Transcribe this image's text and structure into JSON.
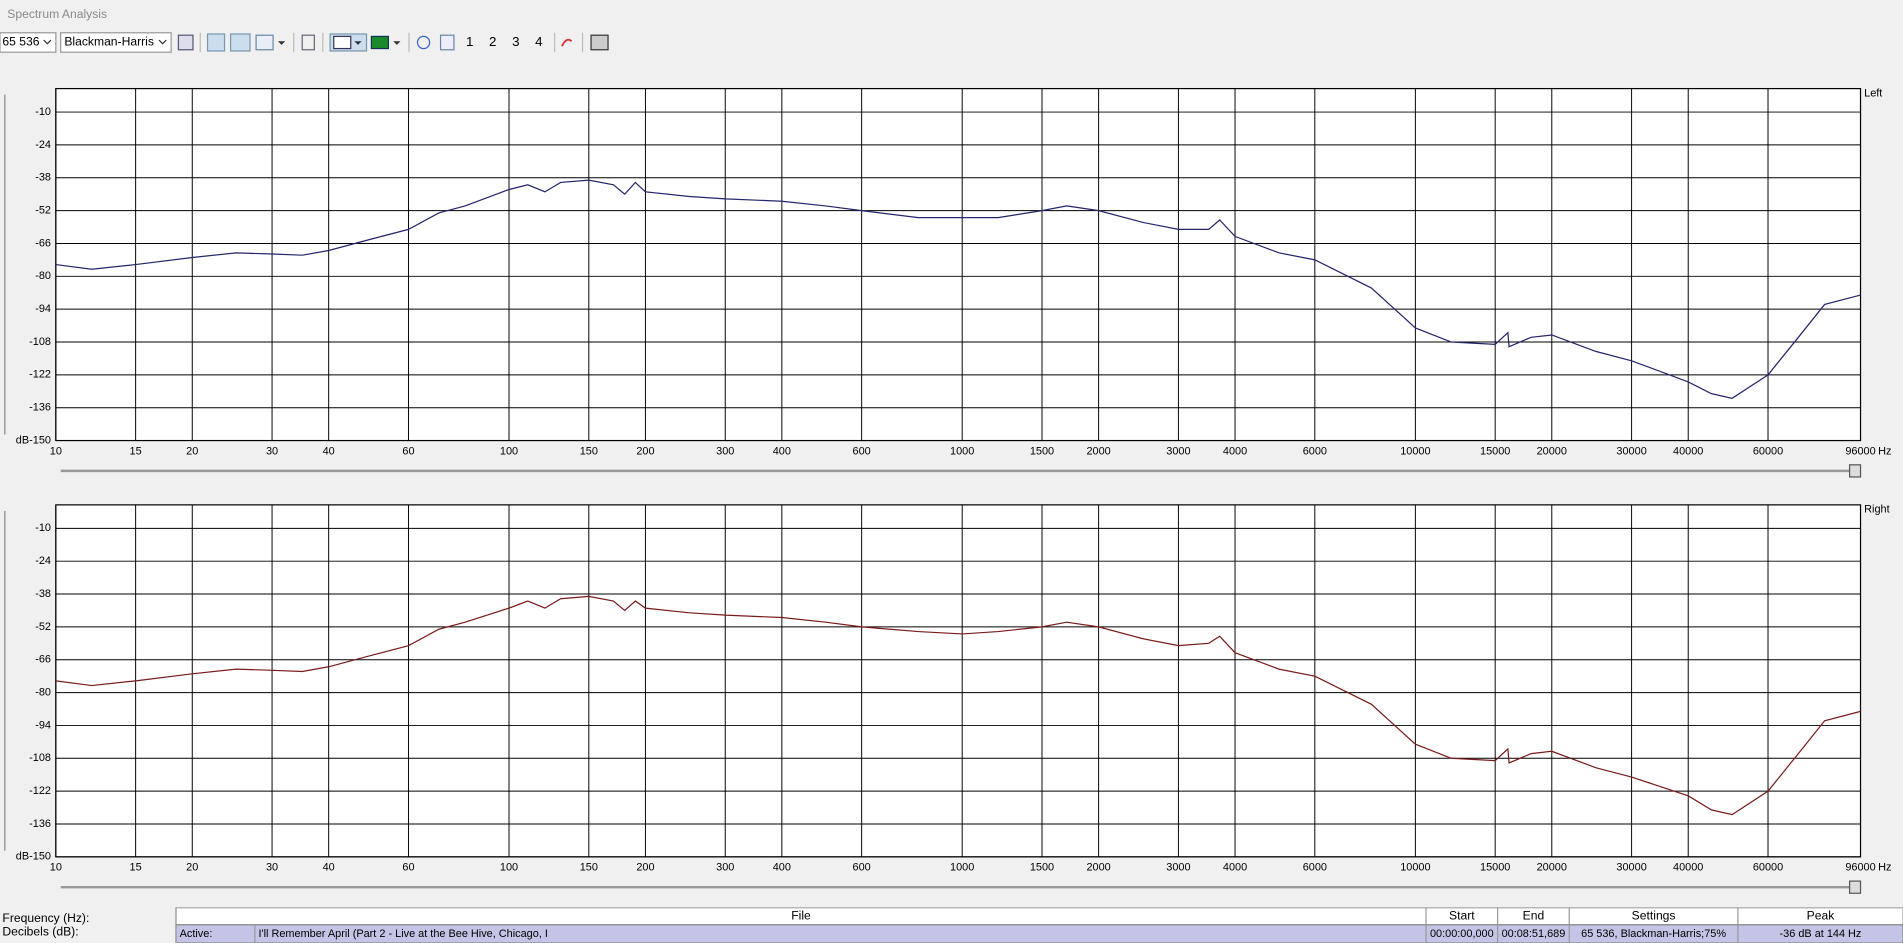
{
  "window": {
    "title": "Spectrum Analysis"
  },
  "toolbar": {
    "fft_size": "65 536",
    "window_function": "Blackman-Harris",
    "snapshots": [
      "1",
      "2",
      "3",
      "4"
    ]
  },
  "chart_data": [
    {
      "type": "line",
      "x_scale": "log",
      "grid": true,
      "ylabel": "dB",
      "xlabel": "Hz",
      "xlim": [
        10,
        96000
      ],
      "ylim": [
        -150,
        0
      ],
      "xticks": [
        10,
        15,
        20,
        30,
        40,
        60,
        100,
        150,
        200,
        300,
        400,
        600,
        1000,
        1500,
        2000,
        3000,
        4000,
        6000,
        10000,
        15000,
        20000,
        30000,
        40000,
        60000,
        96000
      ],
      "yticks": [
        -10,
        -24,
        -38,
        -52,
        -66,
        -80,
        -94,
        -108,
        -122,
        -136,
        -150
      ],
      "x": [
        10,
        12,
        15,
        20,
        25,
        30,
        35,
        40,
        50,
        60,
        70,
        80,
        100,
        110,
        120,
        130,
        150,
        170,
        180,
        190,
        200,
        250,
        300,
        400,
        500,
        600,
        800,
        1000,
        1200,
        1500,
        1700,
        2000,
        2500,
        3000,
        3500,
        3700,
        4000,
        5000,
        6000,
        8000,
        10000,
        12000,
        15000,
        16000,
        16100,
        18000,
        20000,
        25000,
        30000,
        40000,
        45000,
        50000,
        60000,
        70000,
        80000,
        96000
      ],
      "series": [
        {
          "name": "Left",
          "color": "#24246e",
          "values": [
            -75,
            -77,
            -75,
            -72,
            -70,
            -70.5,
            -71,
            -69,
            -64,
            -60,
            -53,
            -50,
            -43,
            -41,
            -44,
            -40,
            -39,
            -41,
            -45,
            -40,
            -44,
            -46,
            -47,
            -48,
            -50,
            -52,
            -55,
            -55,
            -55,
            -52,
            -50,
            -52,
            -57,
            -60,
            -60,
            -56,
            -63,
            -70,
            -73,
            -85,
            -102,
            -108,
            -109,
            -104,
            -110,
            -106,
            -105,
            -112,
            -116,
            -125,
            -130,
            -132,
            -122,
            -106,
            -92,
            -88
          ]
        }
      ]
    },
    {
      "type": "line",
      "x_scale": "log",
      "grid": true,
      "ylabel": "dB",
      "xlabel": "Hz",
      "xlim": [
        10,
        96000
      ],
      "ylim": [
        -150,
        0
      ],
      "xticks": [
        10,
        15,
        20,
        30,
        40,
        60,
        100,
        150,
        200,
        300,
        400,
        600,
        1000,
        1500,
        2000,
        3000,
        4000,
        6000,
        10000,
        15000,
        20000,
        30000,
        40000,
        60000,
        96000
      ],
      "yticks": [
        -10,
        -24,
        -38,
        -52,
        -66,
        -80,
        -94,
        -108,
        -122,
        -136,
        -150
      ],
      "x": [
        10,
        12,
        15,
        20,
        25,
        30,
        35,
        40,
        50,
        60,
        70,
        80,
        100,
        110,
        120,
        130,
        150,
        170,
        180,
        190,
        200,
        250,
        300,
        400,
        500,
        600,
        800,
        1000,
        1200,
        1500,
        1700,
        2000,
        2500,
        3000,
        3500,
        3700,
        4000,
        5000,
        6000,
        8000,
        10000,
        12000,
        15000,
        16000,
        16100,
        18000,
        20000,
        25000,
        30000,
        40000,
        45000,
        50000,
        60000,
        70000,
        80000,
        96000
      ],
      "series": [
        {
          "name": "Right",
          "color": "#7a1a1a",
          "values": [
            -75,
            -77,
            -75,
            -72,
            -70,
            -70.5,
            -71,
            -69,
            -64,
            -60,
            -53,
            -50,
            -44,
            -41,
            -44,
            -40,
            -39,
            -41,
            -45,
            -41,
            -44,
            -46,
            -47,
            -48,
            -50,
            -52,
            -54,
            -55,
            -54,
            -52,
            -50,
            -52,
            -57,
            -60,
            -59,
            -56,
            -63,
            -70,
            -73,
            -85,
            -102,
            -108,
            -109,
            -104,
            -110,
            -106,
            -105,
            -112,
            -116,
            -124,
            -130,
            -132,
            -122,
            -106,
            -92,
            -88
          ]
        }
      ]
    }
  ],
  "status": {
    "labels": [
      "Frequency (Hz):",
      "Decibels (dB):"
    ],
    "table": {
      "header": [
        "File",
        "Start",
        "End",
        "Settings",
        "Peak"
      ],
      "row": [
        "Active:",
        "I'll Remember April  (Part 2 - Live at the Bee Hive, Chicago, I",
        "00:00:00,000",
        "00:08:51,689",
        "65 536, Blackman-Harris;75%",
        "-36 dB at 144 Hz"
      ]
    }
  }
}
